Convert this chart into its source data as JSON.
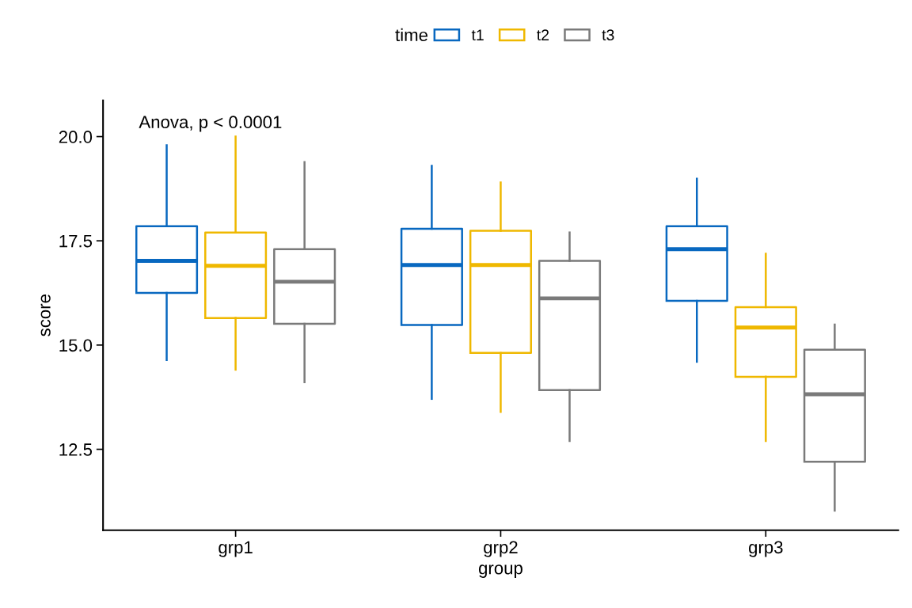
{
  "chart_data": {
    "type": "box",
    "xlabel": "group",
    "ylabel": "score",
    "legend_title": "time",
    "legend": "top",
    "grid": false,
    "categories": [
      "grp1",
      "grp2",
      "grp3"
    ],
    "ylim": [
      10.56,
      20.87
    ],
    "yticks": [
      {
        "value": 12.5,
        "label": "12.5"
      },
      {
        "value": 15,
        "label": "15.0"
      },
      {
        "value": 17.5,
        "label": "17.5"
      },
      {
        "value": 20,
        "label": "20.0"
      }
    ],
    "annotations": [
      "Anova, p < 0.0001"
    ],
    "series": [
      {
        "name": "t1",
        "color": "#0868c0",
        "boxes": [
          {
            "low": 14.64,
            "q1": 16.25,
            "median": 17.02,
            "q3": 17.85,
            "high": 19.79
          },
          {
            "low": 13.71,
            "q1": 15.48,
            "median": 16.92,
            "q3": 17.79,
            "high": 19.3
          },
          {
            "low": 14.6,
            "q1": 16.06,
            "median": 17.3,
            "q3": 17.85,
            "high": 18.99
          }
        ]
      },
      {
        "name": "t2",
        "color": "#efb800",
        "boxes": [
          {
            "low": 14.41,
            "q1": 15.65,
            "median": 16.9,
            "q3": 17.7,
            "high": 20.0
          },
          {
            "low": 13.4,
            "q1": 14.81,
            "median": 16.92,
            "q3": 17.74,
            "high": 18.9
          },
          {
            "low": 12.7,
            "q1": 14.24,
            "median": 15.42,
            "q3": 15.91,
            "high": 17.19
          }
        ]
      },
      {
        "name": "t3",
        "color": "#7a7a7a",
        "boxes": [
          {
            "low": 14.11,
            "q1": 15.51,
            "median": 16.52,
            "q3": 17.3,
            "high": 19.39
          },
          {
            "low": 12.7,
            "q1": 13.92,
            "median": 16.12,
            "q3": 17.02,
            "high": 17.7
          },
          {
            "low": 11.03,
            "q1": 12.2,
            "median": 13.82,
            "q3": 14.89,
            "high": 15.49
          }
        ]
      }
    ]
  }
}
